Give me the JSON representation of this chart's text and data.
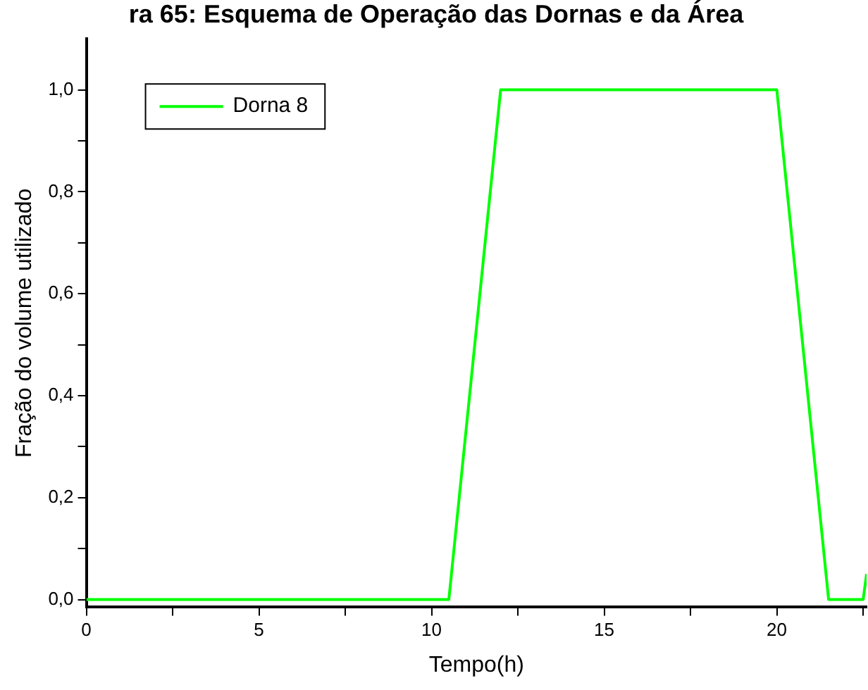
{
  "chart_data": {
    "type": "line",
    "title": "ra 65: Esquema de Operação das Dornas e da Área",
    "xlabel": "Tempo(h)",
    "ylabel": "Fração do volume utilizado",
    "series": [
      {
        "name": "Dorna 8",
        "color": "#00ff00",
        "x": [
          0,
          10.5,
          12,
          20,
          21.5,
          22.5,
          22.6
        ],
        "values": [
          0,
          0,
          1,
          1,
          0,
          0,
          0.05
        ]
      }
    ],
    "xlim": [
      0,
      22.6
    ],
    "xticks": [
      0,
      {
        "value": 2.5,
        "label": null
      },
      5,
      {
        "value": 7.5,
        "label": null
      },
      10,
      {
        "value": 12.5,
        "label": null
      },
      15,
      {
        "value": 17.5,
        "label": null
      },
      20,
      {
        "value": 22.5,
        "label": null
      }
    ],
    "ylim": [
      -0.015,
      1.1
    ],
    "yticks": [
      {
        "value": 0,
        "label": "0,0"
      },
      {
        "value": 0.1,
        "label": null
      },
      {
        "value": 0.2,
        "label": "0,2"
      },
      {
        "value": 0.3,
        "label": null
      },
      {
        "value": 0.4,
        "label": "0,4"
      },
      {
        "value": 0.5,
        "label": null
      },
      {
        "value": 0.6,
        "label": "0,6"
      },
      {
        "value": 0.7,
        "label": null
      },
      {
        "value": 0.8,
        "label": "0,8"
      },
      {
        "value": 0.9,
        "label": null
      },
      {
        "value": 1.0,
        "label": "1,0"
      }
    ],
    "legend": "top left",
    "marker": "none",
    "line_style": "solid",
    "grid": false
  }
}
